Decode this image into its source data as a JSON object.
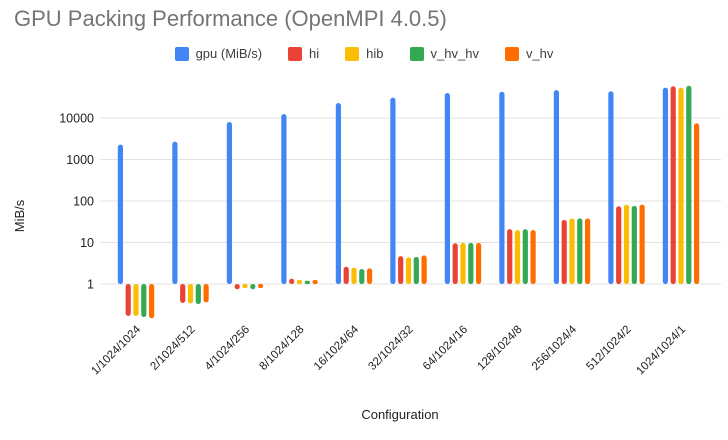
{
  "title": "GPU Packing Performance (OpenMPI 4.0.5)",
  "chart_data": {
    "type": "bar",
    "scale": "log",
    "title": "GPU Packing Performance (OpenMPI 4.0.5)",
    "xlabel": "Configuration",
    "ylabel": "MiB/s",
    "legend_position": "top-center",
    "grid": "horizontal",
    "y_ticks": [
      10000,
      1000,
      100,
      10,
      1
    ],
    "y_tick_labels": [
      "10000",
      "1000",
      "100",
      "10",
      "1"
    ],
    "baseline_value": 1,
    "categories": [
      "1/1024/1024",
      "2/1024/512",
      "4/1024/256",
      "8/1024/128",
      "16/1024/64",
      "32/1024/32",
      "64/1024/16",
      "128/1024/8",
      "256/1024/4",
      "512/1024/2",
      "1024/1024/1"
    ],
    "series": [
      {
        "name": "gpu (MiB/s)",
        "color": "#4285F4",
        "values": [
          2300,
          2700,
          8000,
          12500,
          23000,
          31000,
          40000,
          43000,
          47000,
          44000,
          54000
        ]
      },
      {
        "name": "hi",
        "color": "#EA4335",
        "values": [
          0.17,
          0.35,
          0.75,
          1.35,
          2.6,
          4.7,
          9.6,
          21,
          35,
          75,
          58000
        ]
      },
      {
        "name": "hib",
        "color": "#FBBC04",
        "values": [
          0.17,
          0.34,
          0.8,
          1.25,
          2.5,
          4.4,
          9.8,
          20,
          38,
          82,
          54000
        ]
      },
      {
        "name": "v_hv_hv",
        "color": "#34A853",
        "values": [
          0.16,
          0.33,
          0.75,
          1.2,
          2.3,
          4.5,
          9.8,
          21,
          38,
          76,
          60000
        ]
      },
      {
        "name": "v_hv",
        "color": "#FF6D01",
        "values": [
          0.15,
          0.36,
          0.8,
          1.25,
          2.4,
          4.9,
          9.8,
          20,
          38,
          82,
          7500
        ]
      }
    ]
  }
}
